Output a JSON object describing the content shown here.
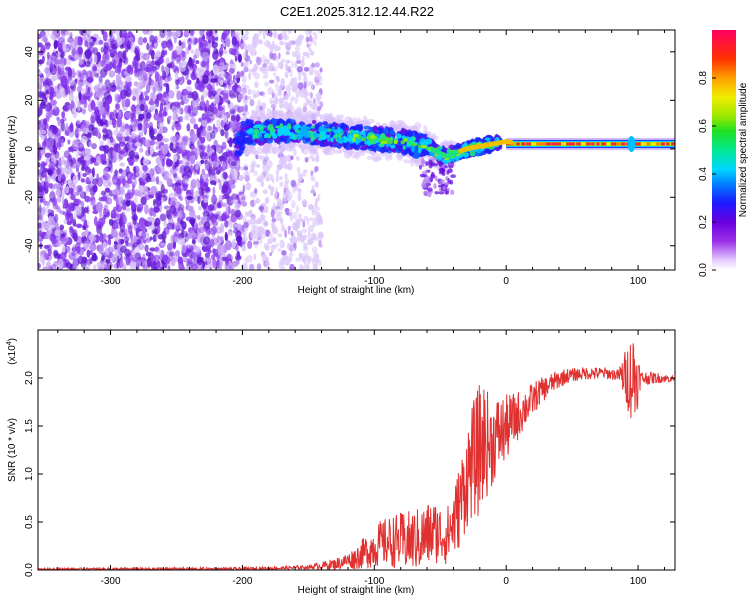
{
  "title": "C2E1.2025.312.12.44.R22",
  "chart_data": [
    {
      "type": "heatmap",
      "title": "C2E1.2025.312.12.44.R22",
      "xlabel": "Height of straight line (km)",
      "ylabel": "Frequency (Hz)",
      "xlim": [
        -355,
        128
      ],
      "ylim": [
        -50,
        49
      ],
      "xticks": [
        -300,
        -200,
        -100,
        0,
        100
      ],
      "yticks": [
        -40,
        -20,
        0,
        20,
        40
      ],
      "colorbar": {
        "label": "Normalized spectral amplitude",
        "range": [
          0.0,
          1.0
        ],
        "ticks": [
          0.0,
          0.2,
          0.4,
          0.6,
          0.8
        ],
        "tick_labels": [
          "0.0",
          "0.2",
          "0.4",
          "0.6",
          "0.8"
        ]
      },
      "features": {
        "noise_region_x": [
          -355,
          -200
        ],
        "faint_noise_x": [
          -200,
          -140
        ],
        "signal_band": [
          {
            "x": -200,
            "f": 7
          },
          {
            "x": -150,
            "f": 7
          },
          {
            "x": -120,
            "f": 5
          },
          {
            "x": -100,
            "f": 4
          },
          {
            "x": -80,
            "f": 3
          },
          {
            "x": -60,
            "f": 1
          },
          {
            "x": -50,
            "f": -2
          },
          {
            "x": -45,
            "f": -3
          },
          {
            "x": -30,
            "f": 0
          },
          {
            "x": -10,
            "f": 2
          },
          {
            "x": 0,
            "f": 3
          },
          {
            "x": 10,
            "f": 2
          },
          {
            "x": 128,
            "f": 2
          }
        ],
        "steady_tone_x": [
          0,
          128
        ],
        "steady_tone_freq": 2
      }
    },
    {
      "type": "line",
      "xlabel": "Height of straight line (km)",
      "ylabel": "SNR (10 * v/v)",
      "yscale_label": "(x10",
      "yscale_exp": "4",
      "xlim": [
        -355,
        128
      ],
      "ylim": [
        0,
        2.5
      ],
      "xticks": [
        -300,
        -200,
        -100,
        0,
        100
      ],
      "yticks": [
        0.0,
        0.5,
        1.0,
        1.5,
        2.0
      ],
      "ytick_labels": [
        "0.0",
        "0.5",
        "1.0",
        "1.5",
        "2.0"
      ],
      "series": [
        {
          "name": "SNR",
          "color": "#e03030",
          "points": [
            [
              -355,
              0.01
            ],
            [
              -300,
              0.01
            ],
            [
              -250,
              0.01
            ],
            [
              -200,
              0.01
            ],
            [
              -170,
              0.02
            ],
            [
              -150,
              0.03
            ],
            [
              -130,
              0.06
            ],
            [
              -115,
              0.12
            ],
            [
              -105,
              0.2
            ],
            [
              -95,
              0.28
            ],
            [
              -85,
              0.3
            ],
            [
              -75,
              0.3
            ],
            [
              -65,
              0.32
            ],
            [
              -55,
              0.4
            ],
            [
              -45,
              0.35
            ],
            [
              -38,
              0.55
            ],
            [
              -32,
              0.85
            ],
            [
              -27,
              1.1
            ],
            [
              -22,
              1.2
            ],
            [
              -17,
              1.35
            ],
            [
              -12,
              1.3
            ],
            [
              -7,
              1.4
            ],
            [
              -2,
              1.45
            ],
            [
              5,
              1.55
            ],
            [
              15,
              1.7
            ],
            [
              25,
              1.85
            ],
            [
              35,
              1.95
            ],
            [
              45,
              2.02
            ],
            [
              60,
              2.05
            ],
            [
              75,
              2.05
            ],
            [
              90,
              2.02
            ],
            [
              100,
              2.0
            ],
            [
              115,
              2.0
            ],
            [
              128,
              1.99
            ]
          ],
          "noise_amplitude": [
            [
              -355,
              0.01
            ],
            [
              -150,
              0.02
            ],
            [
              -120,
              0.08
            ],
            [
              -100,
              0.22
            ],
            [
              -80,
              0.3
            ],
            [
              -60,
              0.35
            ],
            [
              -45,
              0.3
            ],
            [
              -35,
              0.45
            ],
            [
              -20,
              0.7
            ],
            [
              -10,
              0.45
            ],
            [
              0,
              0.35
            ],
            [
              15,
              0.2
            ],
            [
              30,
              0.12
            ],
            [
              50,
              0.07
            ],
            [
              85,
              0.06
            ],
            [
              92,
              0.35
            ],
            [
              97,
              0.55
            ],
            [
              102,
              0.08
            ],
            [
              128,
              0.03
            ]
          ]
        }
      ]
    }
  ]
}
